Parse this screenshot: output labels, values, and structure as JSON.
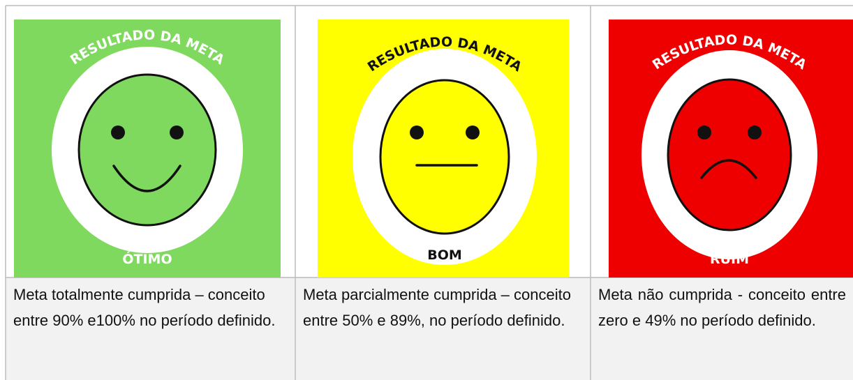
{
  "cells": [
    {
      "title": "RESULTADO DA META",
      "label": "ÓTIMO",
      "description": "Meta totalmente cumprida – conceito entre 90% e100% no período definido."
    },
    {
      "title": "RESULTADO DA META",
      "label": "BOM",
      "description": "Meta parcialmente cumprida – conceito entre 50% e 89%, no período definido."
    },
    {
      "title": "RESULTADO DA META",
      "label": "RUIM",
      "description": "Meta não cumprida - conceito entre zero e 49% no período definido."
    }
  ]
}
